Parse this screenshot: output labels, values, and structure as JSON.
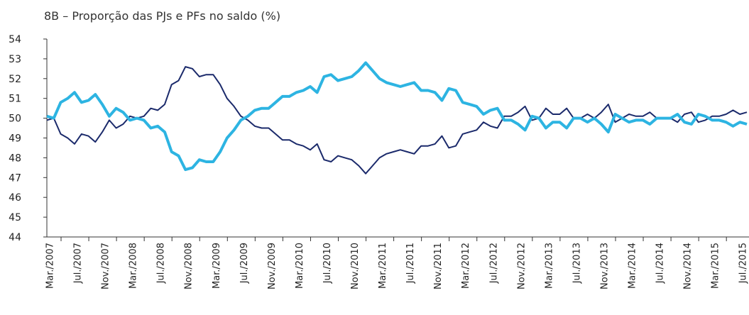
{
  "chart_data": {
    "type": "line",
    "title": "8B – Proporção das PJs e PFs no saldo (%)",
    "categories": [
      "Mar./2007",
      null,
      null,
      null,
      "Jul./2007",
      null,
      null,
      null,
      "Nov./2007",
      null,
      null,
      null,
      "Mar./2008",
      null,
      null,
      null,
      "Jul./2008",
      null,
      null,
      null,
      "Nov./2008",
      null,
      null,
      null,
      "Mar./2009",
      null,
      null,
      null,
      "Jul./2009",
      null,
      null,
      null,
      "Nov./2009",
      null,
      null,
      null,
      "Mar./2010",
      null,
      null,
      null,
      "Jul./2010",
      null,
      null,
      null,
      "Nov./2010",
      null,
      null,
      null,
      "Mar./2011",
      null,
      null,
      null,
      "Jul./2011",
      null,
      null,
      null,
      "Nov./2011",
      null,
      null,
      null,
      "Mar./2012",
      null,
      null,
      null,
      "Jul./2012",
      null,
      null,
      null,
      "Nov./2012",
      null,
      null,
      null,
      "Mar./2013",
      null,
      null,
      null,
      "Jul./2013",
      null,
      null,
      null,
      "Nov./2013",
      null,
      null,
      null,
      "Mar./2014",
      null,
      null,
      null,
      "Jul./2014",
      null,
      null,
      null,
      "Nov./2014",
      null,
      null,
      null,
      "Mar./2015",
      null,
      null,
      null,
      "Jul./2015",
      null
    ],
    "series": [
      {
        "color": "#1b2a6b",
        "width": 2,
        "values": [
          49.9,
          50.0,
          49.2,
          49.0,
          48.7,
          49.2,
          49.1,
          48.8,
          49.3,
          49.9,
          49.5,
          49.7,
          50.1,
          50.0,
          50.1,
          50.5,
          50.4,
          50.7,
          51.7,
          51.9,
          52.6,
          52.5,
          52.1,
          52.2,
          52.2,
          51.7,
          51.0,
          50.6,
          50.1,
          49.9,
          49.6,
          49.5,
          49.5,
          49.2,
          48.9,
          48.9,
          48.7,
          48.6,
          48.4,
          48.7,
          47.9,
          47.8,
          48.1,
          48.0,
          47.9,
          47.6,
          47.2,
          47.6,
          48.0,
          48.2,
          48.3,
          48.4,
          48.3,
          48.2,
          48.6,
          48.6,
          48.7,
          49.1,
          48.5,
          48.6,
          49.2,
          49.3,
          49.4,
          49.8,
          49.6,
          49.5,
          50.1,
          50.1,
          50.3,
          50.6,
          49.9,
          50.0,
          50.5,
          50.2,
          50.2,
          50.5,
          50.0,
          50.0,
          50.2,
          50.0,
          50.3,
          50.7,
          49.8,
          50.0,
          50.2,
          50.1,
          50.1,
          50.3,
          50.0,
          50.0,
          50.0,
          49.8,
          50.2,
          50.3,
          49.8,
          49.9,
          50.1,
          50.1,
          50.2,
          50.4,
          50.2,
          50.3
        ]
      },
      {
        "color": "#2db4e2",
        "width": 4,
        "values": [
          50.1,
          50.0,
          50.8,
          51.0,
          51.3,
          50.8,
          50.9,
          51.2,
          50.7,
          50.1,
          50.5,
          50.3,
          49.9,
          50.0,
          49.9,
          49.5,
          49.6,
          49.3,
          48.3,
          48.1,
          47.4,
          47.5,
          47.9,
          47.8,
          47.8,
          48.3,
          49.0,
          49.4,
          49.9,
          50.1,
          50.4,
          50.5,
          50.5,
          50.8,
          51.1,
          51.1,
          51.3,
          51.4,
          51.6,
          51.3,
          52.1,
          52.2,
          51.9,
          52.0,
          52.1,
          52.4,
          52.8,
          52.4,
          52.0,
          51.8,
          51.7,
          51.6,
          51.7,
          51.8,
          51.4,
          51.4,
          51.3,
          50.9,
          51.5,
          51.4,
          50.8,
          50.7,
          50.6,
          50.2,
          50.4,
          50.5,
          49.9,
          49.9,
          49.7,
          49.4,
          50.1,
          50.0,
          49.5,
          49.8,
          49.8,
          49.5,
          50.0,
          50.0,
          49.8,
          50.0,
          49.7,
          49.3,
          50.2,
          50.0,
          49.8,
          49.9,
          49.9,
          49.7,
          50.0,
          50.0,
          50.0,
          50.2,
          49.8,
          49.7,
          50.2,
          50.1,
          49.9,
          49.9,
          49.8,
          49.6,
          49.8,
          49.7
        ]
      }
    ],
    "ylim": [
      44,
      54
    ],
    "yticks": [
      44,
      45,
      46,
      47,
      48,
      49,
      50,
      51,
      52,
      53,
      54
    ]
  }
}
